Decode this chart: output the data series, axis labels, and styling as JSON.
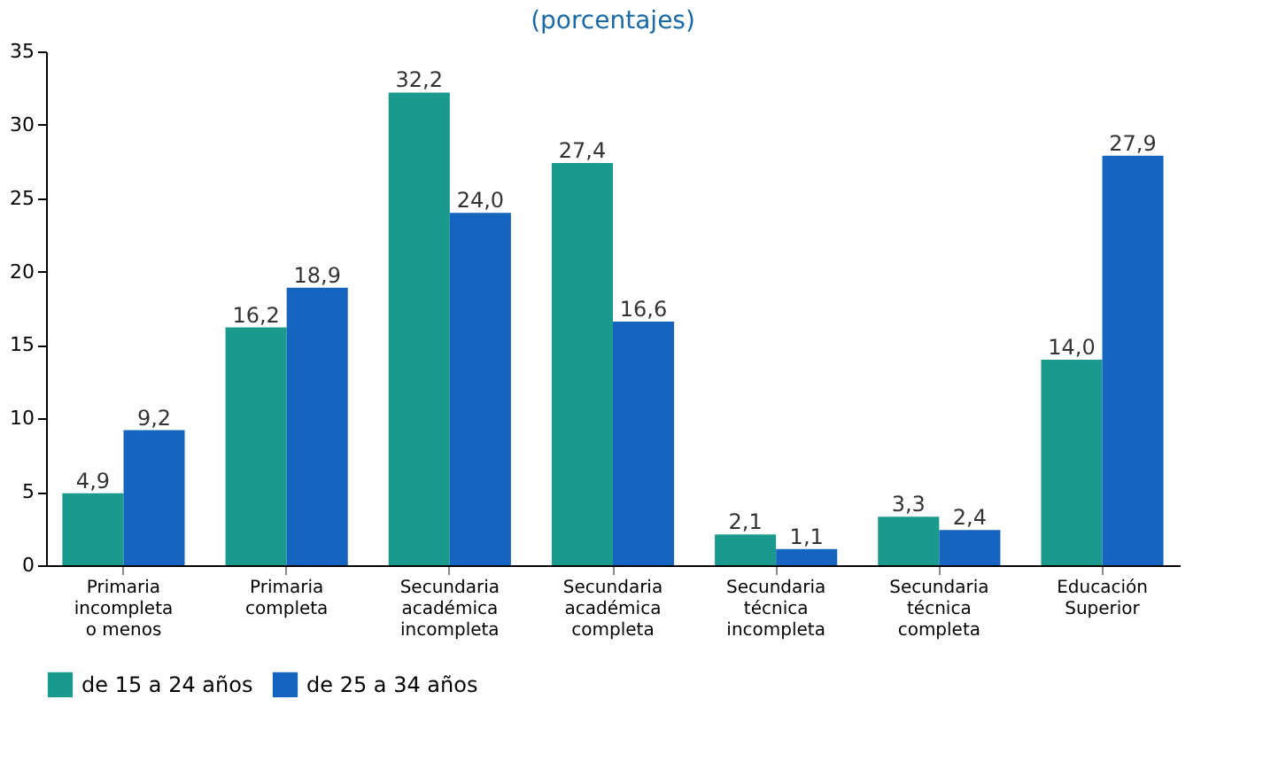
{
  "chart_data": {
    "type": "bar",
    "title": "(porcentajes)",
    "categories": [
      "Primaria incompleta o menos",
      "Primaria completa",
      "Secundaria académica incompleta",
      "Secundaria académica completa",
      "Secundaria técnica incompleta",
      "Secundaria técnica completa",
      "Educación Superior"
    ],
    "series": [
      {
        "name": "de 15 a 24 años",
        "color": "#1a9a8c",
        "values": [
          4.9,
          16.2,
          32.2,
          27.4,
          2.1,
          3.3,
          14.0
        ],
        "value_labels": [
          "4,9",
          "16,2",
          "32,2",
          "27,4",
          "2,1",
          "3,3",
          "14,0"
        ]
      },
      {
        "name": "de 25 a 34 años",
        "color": "#1565c0",
        "values": [
          9.2,
          18.9,
          24.0,
          16.6,
          1.1,
          2.4,
          27.9
        ],
        "value_labels": [
          "9,2",
          "18,9",
          "24,0",
          "16,6",
          "1,1",
          "2,4",
          "27,9"
        ]
      }
    ],
    "ylim": [
      0,
      35
    ],
    "yticks": [
      0,
      5,
      10,
      15,
      20,
      25,
      30,
      35
    ],
    "grid": false,
    "legend": "bottom"
  }
}
